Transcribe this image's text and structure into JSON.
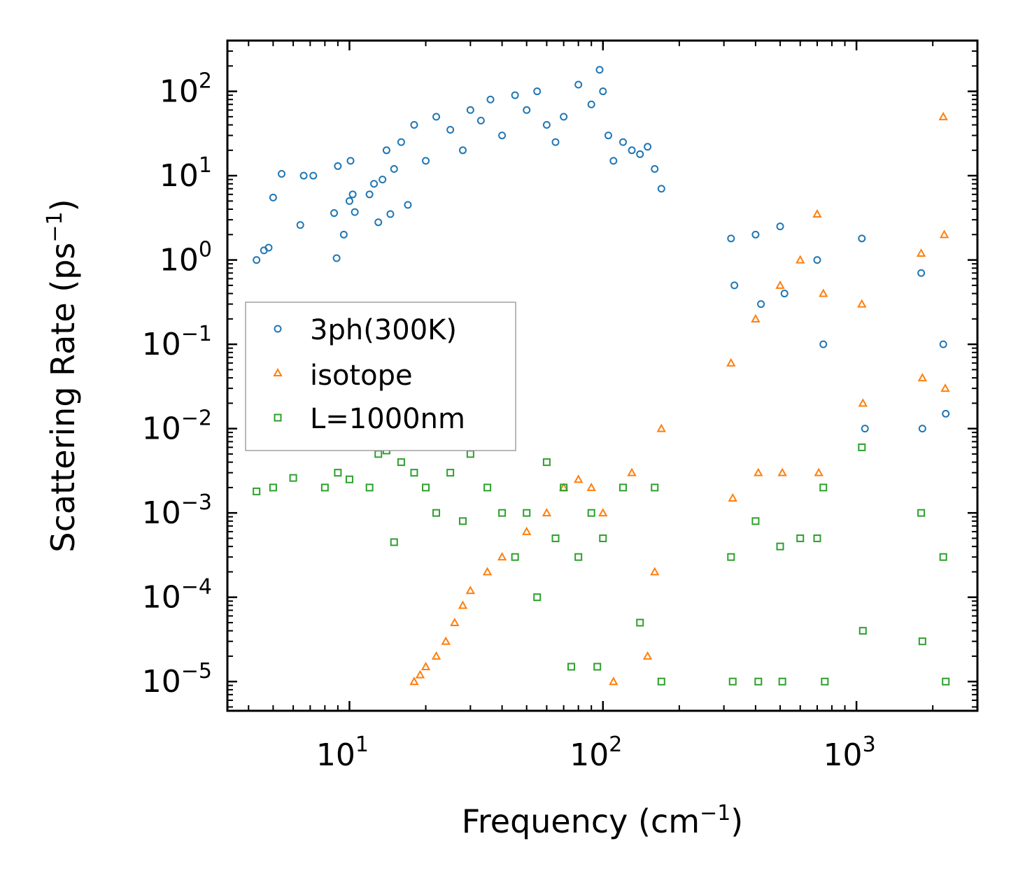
{
  "chart_data": {
    "type": "scatter",
    "xscale": "log",
    "yscale": "log",
    "xlabel": "Frequency (cm",
    "xlabel_exp": "−1",
    "xlabel_close": ")",
    "ylabel": "Scattering Rate (ps",
    "ylabel_exp": "−1",
    "ylabel_close": ")",
    "xlim": [
      3.3,
      3000
    ],
    "ylim": [
      4.5e-06,
      400
    ],
    "xticks": [
      {
        "value": 10,
        "base": "10",
        "exp": "1"
      },
      {
        "value": 100,
        "base": "10",
        "exp": "2"
      },
      {
        "value": 1000,
        "base": "10",
        "exp": "3"
      }
    ],
    "yticks": [
      {
        "value": 1e-05,
        "base": "10",
        "exp": "−5"
      },
      {
        "value": 0.0001,
        "base": "10",
        "exp": "−4"
      },
      {
        "value": 0.001,
        "base": "10",
        "exp": "−3"
      },
      {
        "value": 0.01,
        "base": "10",
        "exp": "−2"
      },
      {
        "value": 0.1,
        "base": "10",
        "exp": "−1"
      },
      {
        "value": 1,
        "base": "10",
        "exp": "0"
      },
      {
        "value": 10,
        "base": "10",
        "exp": "1"
      },
      {
        "value": 100,
        "base": "10",
        "exp": "2"
      }
    ],
    "legend_position": "center-left",
    "series": [
      {
        "name": "3ph(300K)",
        "marker": "circle",
        "color": "#1f77b4",
        "points": [
          [
            4.3,
            1.0
          ],
          [
            4.6,
            1.3
          ],
          [
            4.8,
            1.4
          ],
          [
            5.0,
            5.5
          ],
          [
            5.4,
            10.5
          ],
          [
            6.4,
            2.6
          ],
          [
            6.6,
            10.0
          ],
          [
            7.2,
            10.0
          ],
          [
            8.7,
            3.6
          ],
          [
            8.9,
            1.05
          ],
          [
            9.0,
            13.0
          ],
          [
            9.5,
            2.0
          ],
          [
            10.0,
            5.0
          ],
          [
            10.1,
            15.0
          ],
          [
            10.3,
            6.0
          ],
          [
            10.5,
            3.7
          ],
          [
            12.0,
            6.0
          ],
          [
            12.5,
            8.0
          ],
          [
            13.0,
            2.8
          ],
          [
            13.5,
            9.0
          ],
          [
            14.0,
            20.0
          ],
          [
            14.5,
            3.5
          ],
          [
            15.0,
            12.0
          ],
          [
            16.0,
            25.0
          ],
          [
            17.0,
            4.5
          ],
          [
            18.0,
            40.0
          ],
          [
            20.0,
            15.0
          ],
          [
            22.0,
            50.0
          ],
          [
            25.0,
            35.0
          ],
          [
            28.0,
            20.0
          ],
          [
            30.0,
            60.0
          ],
          [
            33.0,
            45.0
          ],
          [
            36.0,
            80.0
          ],
          [
            40.0,
            30.0
          ],
          [
            45.0,
            90.0
          ],
          [
            50.0,
            60.0
          ],
          [
            55.0,
            100.0
          ],
          [
            60.0,
            40.0
          ],
          [
            65.0,
            25.0
          ],
          [
            70.0,
            50.0
          ],
          [
            80.0,
            120.0
          ],
          [
            90.0,
            70.0
          ],
          [
            97.0,
            180.0
          ],
          [
            100.0,
            100.0
          ],
          [
            105.0,
            30.0
          ],
          [
            110.0,
            15.0
          ],
          [
            120.0,
            25.0
          ],
          [
            130.0,
            20.0
          ],
          [
            140.0,
            18.0
          ],
          [
            150.0,
            22.0
          ],
          [
            160.0,
            12.0
          ],
          [
            170.0,
            7.0
          ],
          [
            320.0,
            1.8
          ],
          [
            330.0,
            0.5
          ],
          [
            400.0,
            2.0
          ],
          [
            420.0,
            0.3
          ],
          [
            500.0,
            2.5
          ],
          [
            520.0,
            0.4
          ],
          [
            700.0,
            1.0
          ],
          [
            740.0,
            0.1
          ],
          [
            1050.0,
            1.8
          ],
          [
            1080.0,
            0.01
          ],
          [
            1800.0,
            0.7
          ],
          [
            1820.0,
            0.01
          ],
          [
            2200.0,
            0.1
          ],
          [
            2250.0,
            0.015
          ]
        ]
      },
      {
        "name": "isotope",
        "marker": "triangle",
        "color": "#ff7f0e",
        "points": [
          [
            18.0,
            1e-05
          ],
          [
            19.0,
            1.2e-05
          ],
          [
            20.0,
            1.5e-05
          ],
          [
            22.0,
            2e-05
          ],
          [
            24.0,
            3e-05
          ],
          [
            26.0,
            5e-05
          ],
          [
            28.0,
            8e-05
          ],
          [
            30.0,
            0.00012
          ],
          [
            35.0,
            0.0002
          ],
          [
            40.0,
            0.0003
          ],
          [
            50.0,
            0.0006
          ],
          [
            60.0,
            0.001
          ],
          [
            70.0,
            0.002
          ],
          [
            80.0,
            0.0025
          ],
          [
            90.0,
            0.002
          ],
          [
            100.0,
            0.001
          ],
          [
            110.0,
            1e-05
          ],
          [
            130.0,
            0.003
          ],
          [
            150.0,
            2e-05
          ],
          [
            160.0,
            0.0002
          ],
          [
            170.0,
            0.01
          ],
          [
            320.0,
            0.06
          ],
          [
            325.0,
            0.0015
          ],
          [
            400.0,
            0.2
          ],
          [
            410.0,
            0.003
          ],
          [
            500.0,
            0.5
          ],
          [
            510.0,
            0.003
          ],
          [
            600.0,
            1.0
          ],
          [
            700.0,
            3.5
          ],
          [
            710.0,
            0.003
          ],
          [
            740.0,
            0.4
          ],
          [
            1050.0,
            0.3
          ],
          [
            1060.0,
            0.02
          ],
          [
            1800.0,
            1.2
          ],
          [
            1820.0,
            0.04
          ],
          [
            2200.0,
            50.0
          ],
          [
            2220.0,
            2.0
          ],
          [
            2240.0,
            0.03
          ]
        ]
      },
      {
        "name": "L=1000nm",
        "marker": "square",
        "color": "#2ca02c",
        "points": [
          [
            4.3,
            0.0018
          ],
          [
            5.0,
            0.002
          ],
          [
            6.0,
            0.0026
          ],
          [
            8.0,
            0.002
          ],
          [
            9.0,
            0.003
          ],
          [
            10.0,
            0.0025
          ],
          [
            12.0,
            0.002
          ],
          [
            13.0,
            0.005
          ],
          [
            14.0,
            0.0055
          ],
          [
            15.0,
            0.00045
          ],
          [
            16.0,
            0.004
          ],
          [
            18.0,
            0.003
          ],
          [
            20.0,
            0.002
          ],
          [
            22.0,
            0.001
          ],
          [
            25.0,
            0.003
          ],
          [
            28.0,
            0.0008
          ],
          [
            30.0,
            0.005
          ],
          [
            35.0,
            0.002
          ],
          [
            40.0,
            0.001
          ],
          [
            45.0,
            0.0003
          ],
          [
            50.0,
            0.001
          ],
          [
            55.0,
            0.0001
          ],
          [
            60.0,
            0.004
          ],
          [
            65.0,
            0.0005
          ],
          [
            70.0,
            0.002
          ],
          [
            75.0,
            1.5e-05
          ],
          [
            80.0,
            0.0003
          ],
          [
            90.0,
            0.001
          ],
          [
            95.0,
            1.5e-05
          ],
          [
            100.0,
            0.0005
          ],
          [
            120.0,
            0.002
          ],
          [
            140.0,
            5e-05
          ],
          [
            160.0,
            0.002
          ],
          [
            170.0,
            1e-05
          ],
          [
            320.0,
            0.0003
          ],
          [
            325.0,
            1e-05
          ],
          [
            400.0,
            0.0008
          ],
          [
            410.0,
            1e-05
          ],
          [
            500.0,
            0.0004
          ],
          [
            510.0,
            1e-05
          ],
          [
            600.0,
            0.0005
          ],
          [
            700.0,
            0.0005
          ],
          [
            740.0,
            0.002
          ],
          [
            750.0,
            1e-05
          ],
          [
            1050.0,
            0.006
          ],
          [
            1060.0,
            4e-05
          ],
          [
            1800.0,
            0.001
          ],
          [
            1820.0,
            3e-05
          ],
          [
            2200.0,
            0.0003
          ],
          [
            2250.0,
            1e-05
          ]
        ]
      }
    ]
  }
}
